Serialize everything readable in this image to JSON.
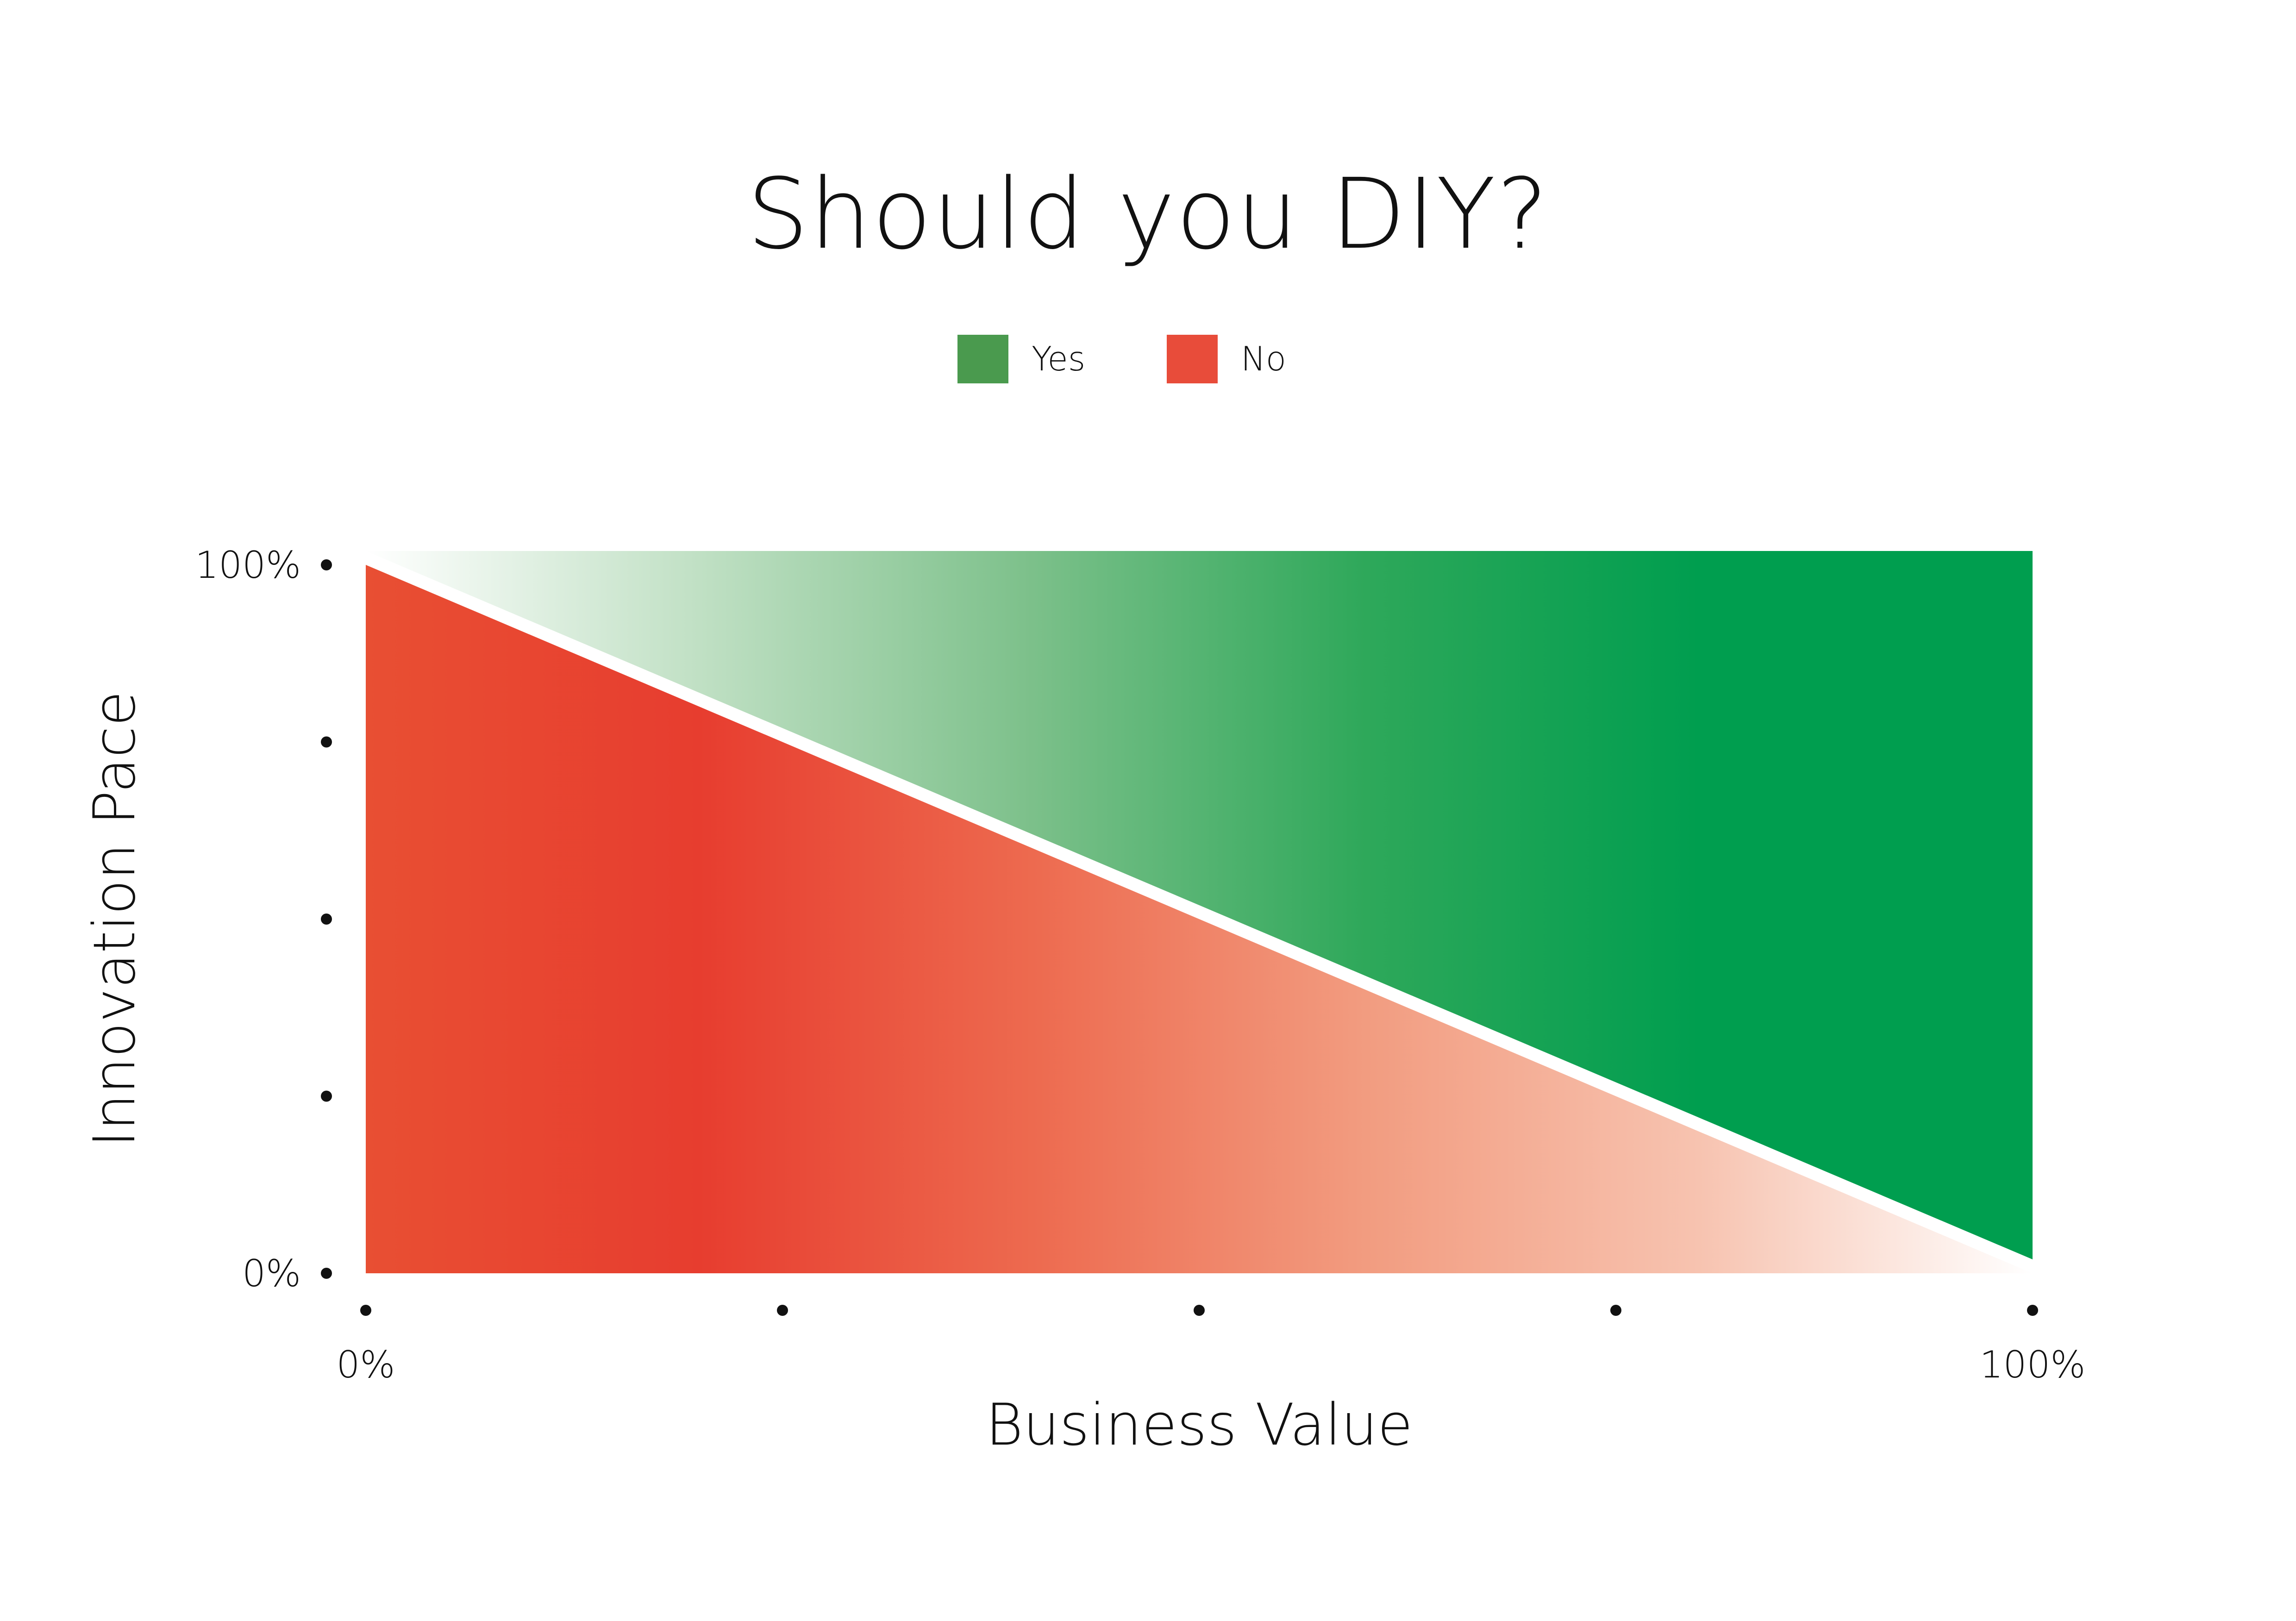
{
  "chart_data": {
    "type": "area",
    "title": "Should you DIY?",
    "xlabel": "Business Value",
    "ylabel": "Innovation Pace",
    "xlim": [
      0,
      100
    ],
    "ylim": [
      0,
      100
    ],
    "x_ticks": [
      0,
      25,
      50,
      75,
      100
    ],
    "x_tick_labels": [
      "0%",
      "",
      "",
      "",
      "100%"
    ],
    "y_ticks": [
      0,
      25,
      50,
      75,
      100
    ],
    "y_tick_labels": [
      "0%",
      "",
      "",
      "",
      "100%"
    ],
    "legend_position": "top-center",
    "grid": false,
    "series": [
      {
        "name": "Yes",
        "color": "#4a9a4e",
        "region": "above-diagonal",
        "boundary": {
          "x": [
            0,
            100
          ],
          "y": [
            100,
            0
          ]
        },
        "gradient": [
          "#ffffff",
          "#c0e0c4",
          "#7cc08a",
          "#2ea85a",
          "#009e4f",
          "#009e4f"
        ]
      },
      {
        "name": "No",
        "color": "#e84c3a",
        "region": "below-diagonal",
        "boundary": {
          "x": [
            0,
            100
          ],
          "y": [
            100,
            0
          ]
        },
        "gradient": [
          "#e84f33",
          "#e73d2f",
          "#ed6a4f",
          "#f29c80",
          "#f7c3b0",
          "#ffffff"
        ]
      }
    ]
  }
}
